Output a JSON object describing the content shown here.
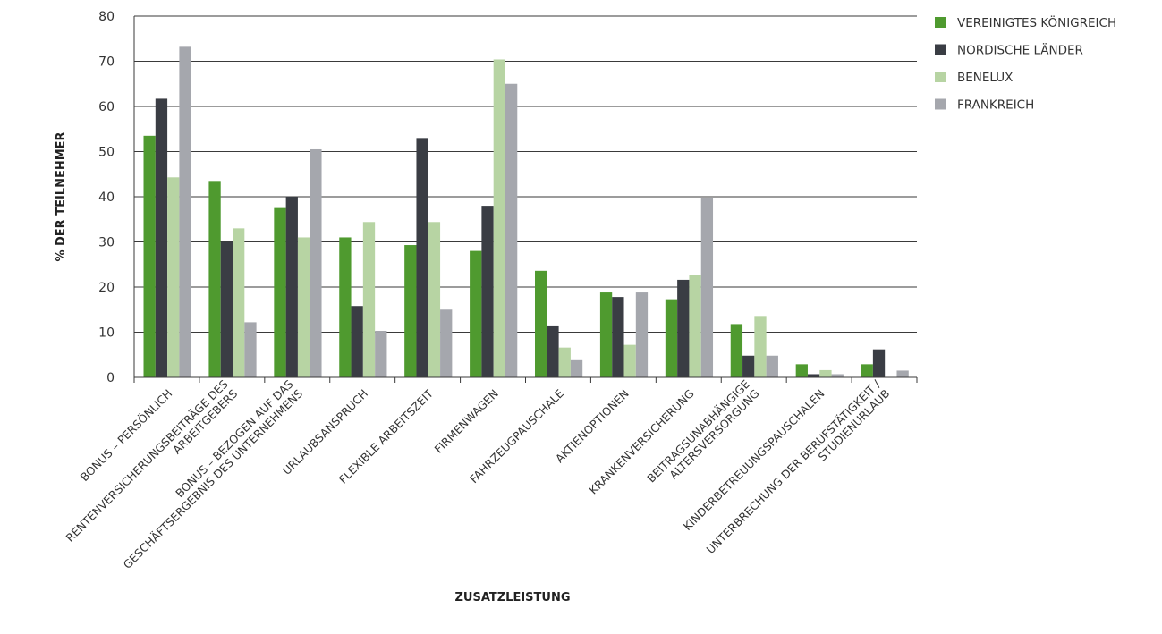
{
  "chart_data": {
    "type": "bar",
    "xlabel": "ZUSATZLEISTUNG",
    "ylabel": "% DER TEILNEHMER",
    "ylim": [
      0,
      80
    ],
    "yticks": [
      0,
      10,
      20,
      30,
      40,
      50,
      60,
      70,
      80
    ],
    "grid": true,
    "legend_position": "top-right",
    "categories": [
      "BONUS – PERSÖNLICH",
      "RENTENVERSICHERUNGSBEITRÄGE DES|ARBEITGEBERS",
      "BONUS – BEZOGEN AUF DAS|GESCHÄFTSERGEBNIS DES UNTERNEHMENS",
      "URLAUBSANSPRUCH",
      "FLEXIBLE ARBEITSZEIT",
      "FIRMENWAGEN",
      "FAHRZEUGPAUSCHALE",
      "AKTIENOPTIONEN",
      "KRANKENVERSICHERUNG",
      "BEITRAGSUNABHÄNGIGE|ALTERSVERSORGUNG",
      "KINDERBETREUUNGSPAUSCHALEN",
      "UNTERBRECHUNG DER BERUFSTÄTIGKEIT /|STUDIENURLAUB"
    ],
    "series": [
      {
        "name": "VEREINIGTES KÖNIGREICH",
        "color": "#4f9a2f",
        "values": [
          53.5,
          43.5,
          37.5,
          31,
          29.3,
          28,
          23.6,
          18.8,
          17.3,
          11.8,
          2.9,
          2.9
        ]
      },
      {
        "name": "NORDISCHE LÄNDER",
        "color": "#3a3d44",
        "values": [
          61.7,
          30,
          40,
          15.8,
          53,
          38,
          11.3,
          17.8,
          21.6,
          4.8,
          0.7,
          6.2
        ]
      },
      {
        "name": "BENELUX",
        "color": "#b7d4a3",
        "values": [
          44.3,
          33,
          31,
          34.4,
          34.4,
          70.4,
          6.6,
          7.2,
          22.6,
          13.6,
          1.6,
          0
        ]
      },
      {
        "name": "FRANKREICH",
        "color": "#a5a7ad",
        "values": [
          73.2,
          12.2,
          50.5,
          10.3,
          15,
          65,
          3.8,
          18.8,
          39.8,
          4.8,
          0.7,
          1.5
        ]
      }
    ]
  }
}
